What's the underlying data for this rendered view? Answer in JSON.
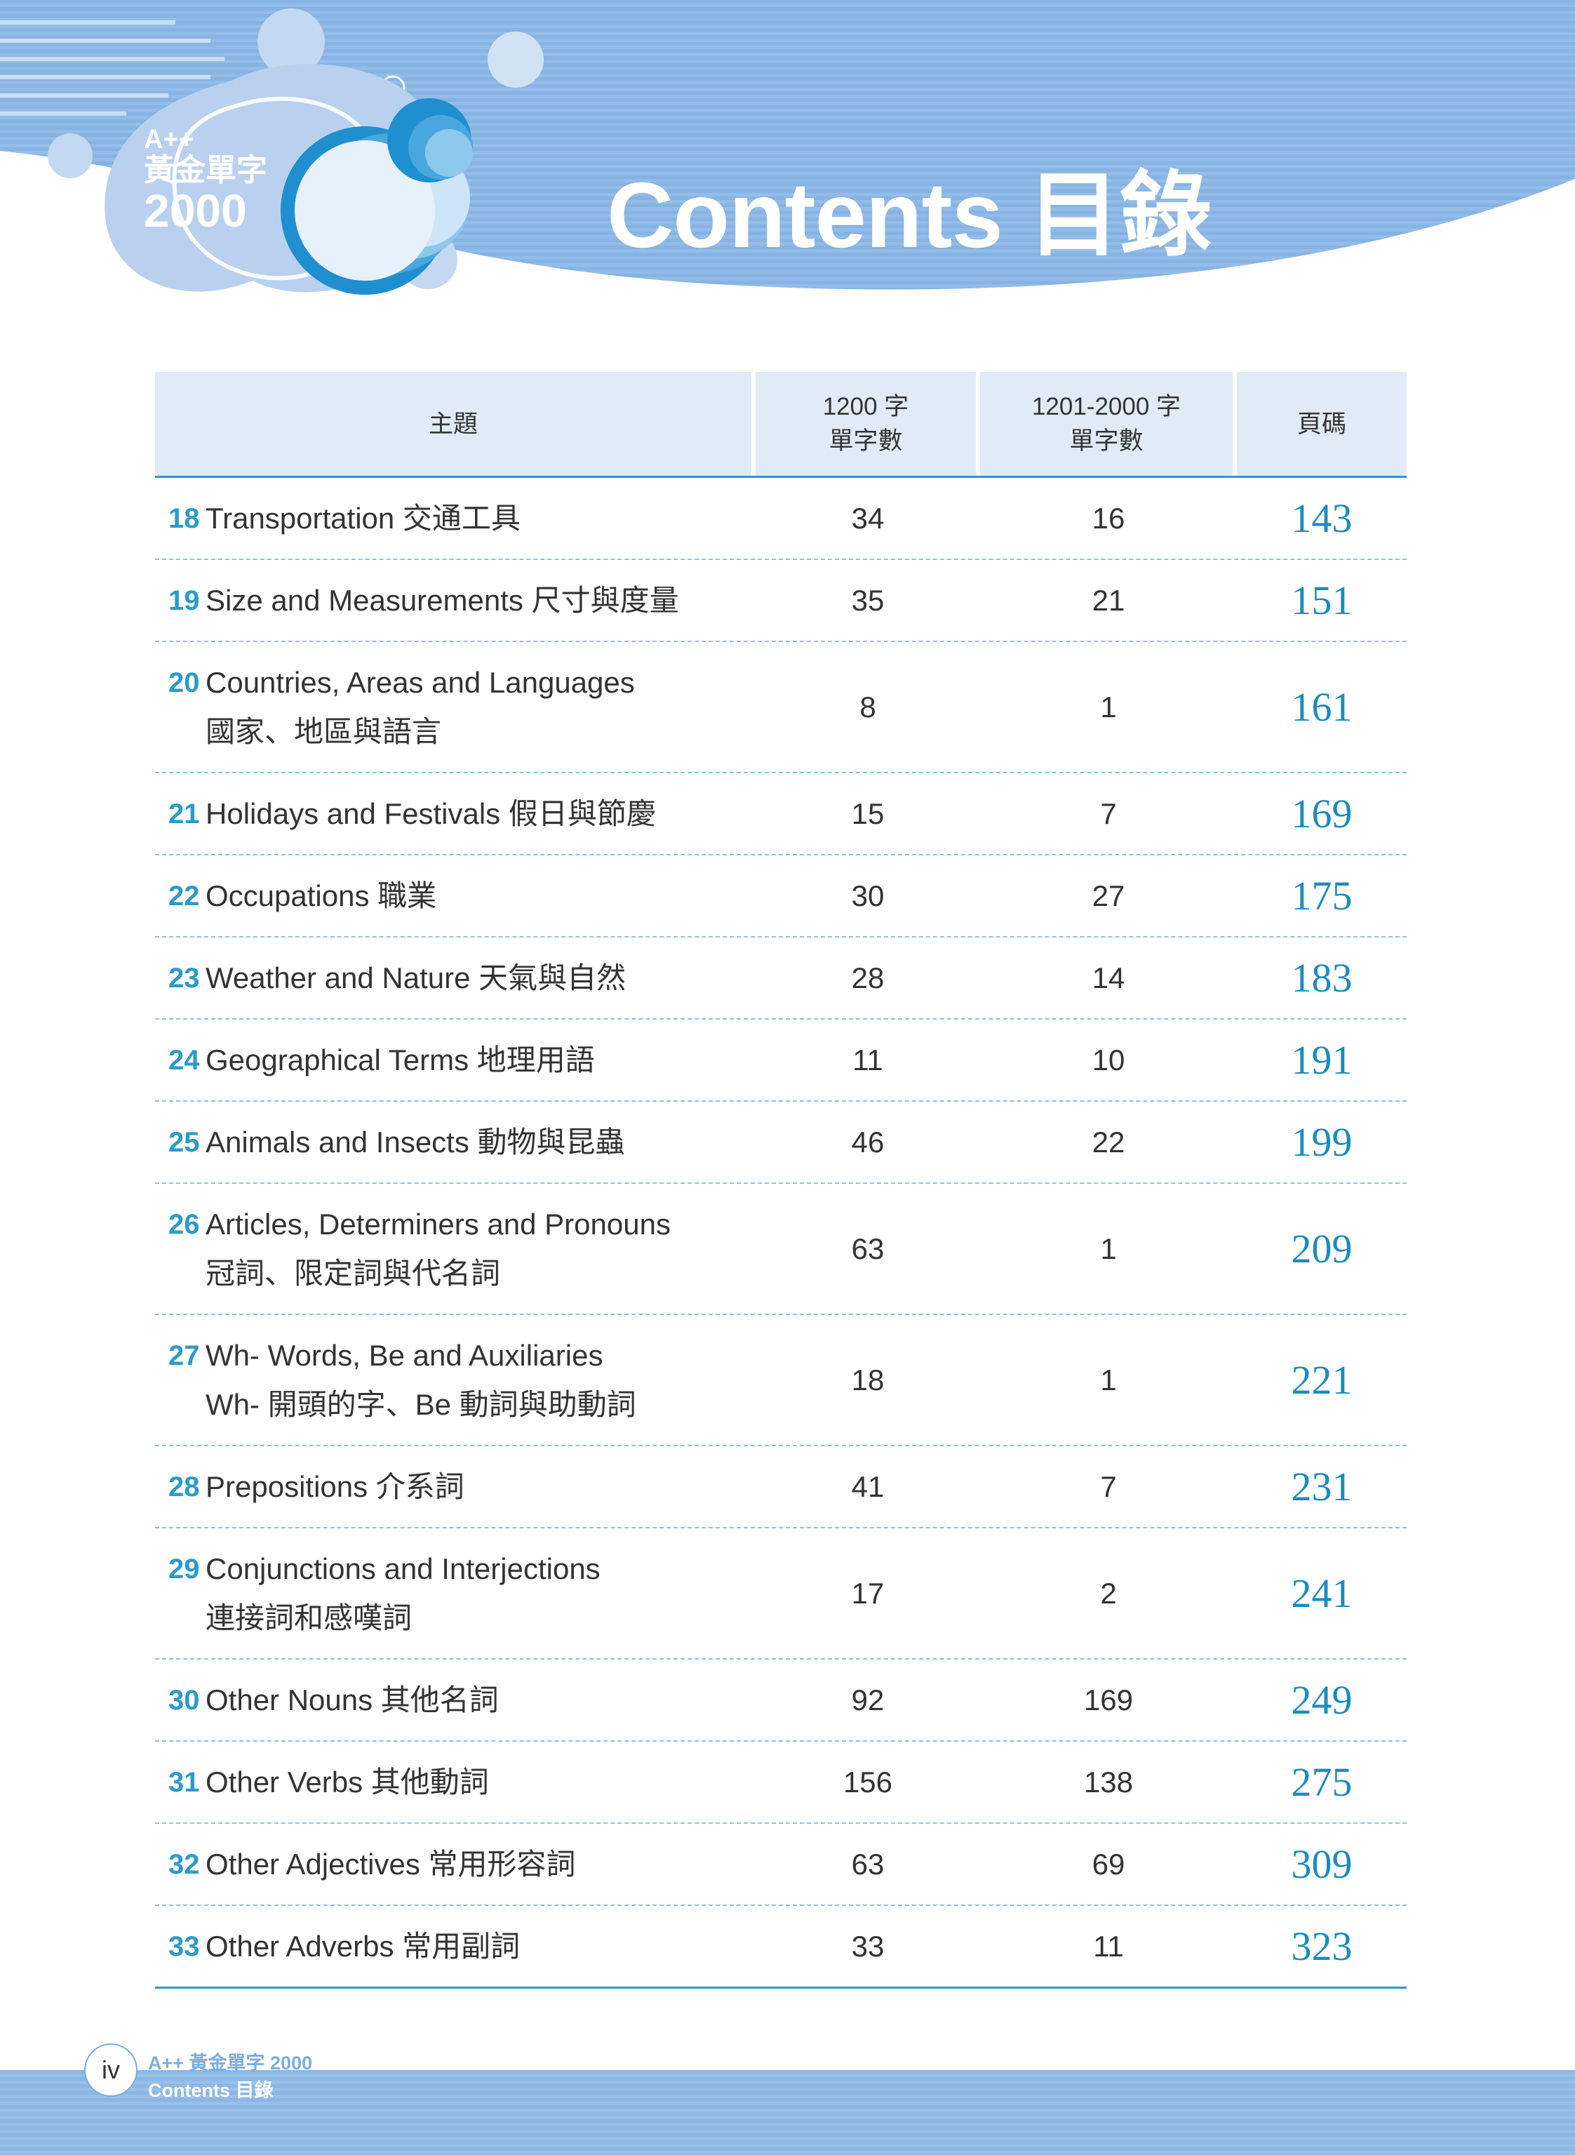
{
  "logo": {
    "line1": "A++",
    "line2": "黃金單字",
    "line3": "2000"
  },
  "title": "Contents 目錄",
  "columns": {
    "topic": "主題",
    "count_1200": "1200 字\n單字數",
    "count_2000": "1201-2000 字\n單字數",
    "page": "頁碼"
  },
  "rows": [
    {
      "num": "18",
      "label": "Transportation 交通工具",
      "c1": "34",
      "c2": "16",
      "page": "143"
    },
    {
      "num": "19",
      "label": "Size and Measurements 尺寸與度量",
      "c1": "35",
      "c2": "21",
      "page": "151"
    },
    {
      "num": "20",
      "label": "Countries, Areas and Languages\n國家、地區與語言",
      "c1": "8",
      "c2": "1",
      "page": "161"
    },
    {
      "num": "21",
      "label": "Holidays and Festivals 假日與節慶",
      "c1": "15",
      "c2": "7",
      "page": "169"
    },
    {
      "num": "22",
      "label": "Occupations 職業",
      "c1": "30",
      "c2": "27",
      "page": "175"
    },
    {
      "num": "23",
      "label": "Weather and Nature 天氣與自然",
      "c1": "28",
      "c2": "14",
      "page": "183"
    },
    {
      "num": "24",
      "label": "Geographical Terms 地理用語",
      "c1": "11",
      "c2": "10",
      "page": "191"
    },
    {
      "num": "25",
      "label": "Animals and Insects 動物與昆蟲",
      "c1": "46",
      "c2": "22",
      "page": "199"
    },
    {
      "num": "26",
      "label": "Articles, Determiners and Pronouns\n冠詞、限定詞與代名詞",
      "c1": "63",
      "c2": "1",
      "page": "209"
    },
    {
      "num": "27",
      "label": "Wh- Words, Be and Auxiliaries\nWh- 開頭的字、Be 動詞與助動詞",
      "c1": "18",
      "c2": "1",
      "page": "221"
    },
    {
      "num": "28",
      "label": "Prepositions 介系詞",
      "c1": "41",
      "c2": "7",
      "page": "231"
    },
    {
      "num": "29",
      "label": "Conjunctions and Interjections\n連接詞和感嘆詞",
      "c1": "17",
      "c2": "2",
      "page": "241"
    },
    {
      "num": "30",
      "label": "Other Nouns 其他名詞",
      "c1": "92",
      "c2": "169",
      "page": "249"
    },
    {
      "num": "31",
      "label": "Other Verbs 其他動詞",
      "c1": "156",
      "c2": "138",
      "page": "275"
    },
    {
      "num": "32",
      "label": "Other Adjectives 常用形容詞",
      "c1": "63",
      "c2": "69",
      "page": "309"
    },
    {
      "num": "33",
      "label": "Other Adverbs 常用副詞",
      "c1": "33",
      "c2": "11",
      "page": "323"
    }
  ],
  "footer": {
    "page_number": "iv",
    "line1": "A++ 黃金單字 2000",
    "line2": "Contents 目錄"
  },
  "colors": {
    "accent": "#2a9bc9",
    "header_blue": "#8ab6e3",
    "table_header_bg": "#e1ebf7",
    "dash": "#8fc2df"
  }
}
